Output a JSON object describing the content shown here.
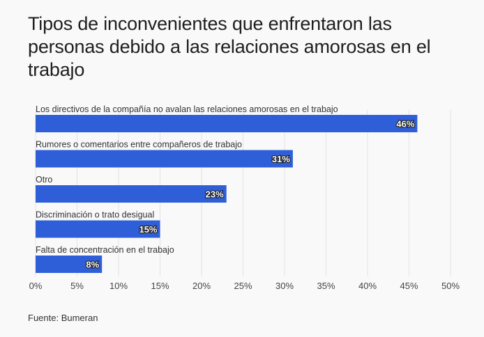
{
  "title": "Tipos de inconvenientes que enfrentaron las personas debido a las relaciones amorosas en el trabajo",
  "source": "Fuente: Bumeran",
  "colors": {
    "bar": "#2f5fd8",
    "background": "#f9f9f9",
    "gridline": "#e3e3e3"
  },
  "chart_data": {
    "type": "bar",
    "orientation": "horizontal",
    "title": "Tipos de inconvenientes que enfrentaron las personas debido a las relaciones amorosas en el trabajo",
    "categories": [
      "Los directivos de la compañía no avalan las relaciones amorosas en el trabajo",
      "Rumores o comentarios entre compañeros de trabajo",
      "Otro",
      "Discriminación o trato desigual",
      "Falta de concentración en el trabajo"
    ],
    "values": [
      46,
      31,
      23,
      15,
      8
    ],
    "value_labels": [
      "46%",
      "31%",
      "23%",
      "15%",
      "8%"
    ],
    "xlim": [
      0,
      50
    ],
    "ticks": [
      0,
      5,
      10,
      15,
      20,
      25,
      30,
      35,
      40,
      45,
      50
    ],
    "tick_labels": [
      "0%",
      "5%",
      "10%",
      "15%",
      "20%",
      "25%",
      "30%",
      "35%",
      "40%",
      "45%",
      "50%"
    ],
    "grid": true,
    "legend": "none"
  }
}
